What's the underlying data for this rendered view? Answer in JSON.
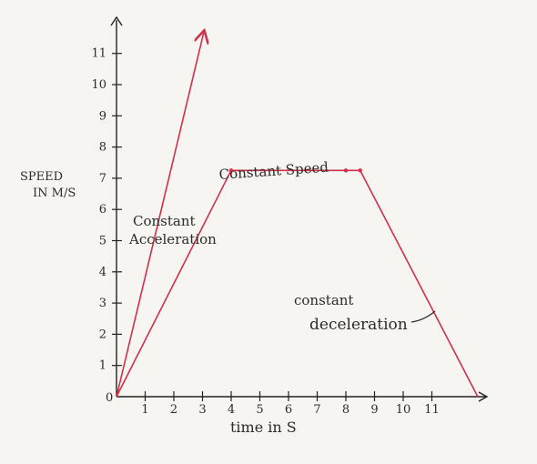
{
  "chart_data": {
    "type": "line",
    "title": "",
    "xlabel": "time in S",
    "ylabel_lines": [
      "SPEED",
      "IN M/S"
    ],
    "origin_label": "0",
    "x_ticks": [
      "1",
      "2",
      "3",
      "4",
      "5",
      "6",
      "7",
      "8",
      "9",
      "10",
      "11"
    ],
    "y_ticks": [
      "1",
      "2",
      "3",
      "4",
      "5",
      "6",
      "7",
      "8",
      "9",
      "10",
      "11"
    ],
    "xlim": [
      0,
      12.5
    ],
    "ylim": [
      0,
      12
    ],
    "grid": false,
    "series": [
      {
        "points": [
          [
            0,
            0
          ],
          [
            4,
            7.25
          ],
          [
            8,
            7.25
          ],
          [
            8.5,
            7.25
          ],
          [
            12.6,
            0
          ]
        ],
        "color": "#d0304a"
      },
      {
        "points": [
          [
            0,
            0
          ],
          [
            3.05,
            11.7
          ]
        ],
        "color": "#d0304a",
        "arrow": true
      }
    ],
    "annotations": [
      {
        "lines": [
          "Constant Speed"
        ]
      },
      {
        "lines": [
          "Constant",
          "Acceleration"
        ]
      },
      {
        "lines": [
          "constant",
          "deceleration"
        ]
      }
    ]
  },
  "colors": {
    "axis": "#222222",
    "line": "#d0304a"
  }
}
